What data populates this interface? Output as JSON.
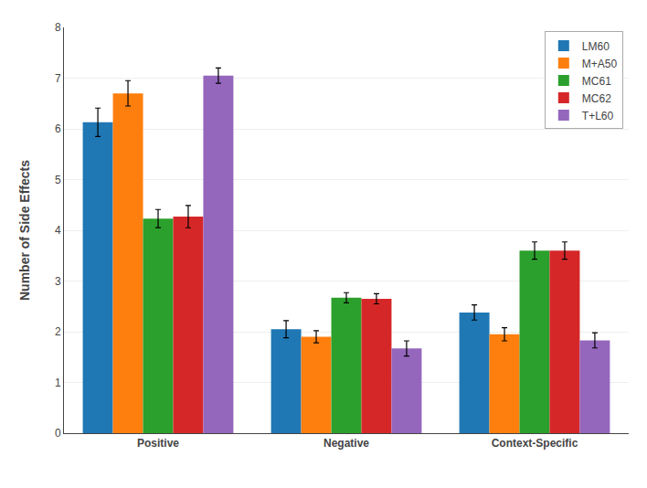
{
  "chart_data": {
    "type": "bar",
    "categories": [
      "Positive",
      "Negative",
      "Context-Specific"
    ],
    "series": [
      {
        "name": "LM60",
        "values": [
          6.13,
          2.05,
          2.38
        ],
        "errors": [
          0.28,
          0.17,
          0.15
        ]
      },
      {
        "name": "M+A50",
        "values": [
          6.7,
          1.9,
          1.95
        ],
        "errors": [
          0.25,
          0.12,
          0.13
        ]
      },
      {
        "name": "MC61",
        "values": [
          4.23,
          2.67,
          3.6
        ],
        "errors": [
          0.18,
          0.1,
          0.17
        ]
      },
      {
        "name": "MC62",
        "values": [
          4.27,
          2.65,
          3.6
        ],
        "errors": [
          0.22,
          0.1,
          0.17
        ]
      },
      {
        "name": "T+L60",
        "values": [
          7.05,
          1.67,
          1.83
        ],
        "errors": [
          0.15,
          0.15,
          0.15
        ]
      }
    ],
    "ylabel": "Number of Side Effects",
    "ylim": [
      0,
      8
    ],
    "yticks": [
      0,
      1,
      2,
      3,
      4,
      5,
      6,
      7,
      8
    ],
    "grid": true,
    "legend": "upper right"
  }
}
